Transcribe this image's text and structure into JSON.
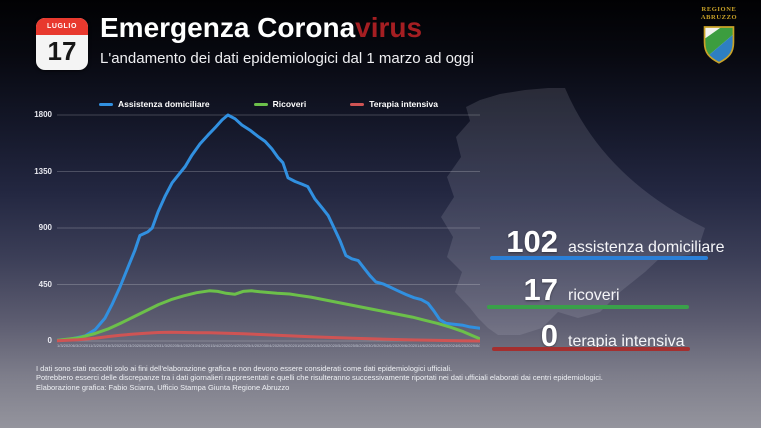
{
  "header": {
    "calendar": {
      "month": "LUGLIO",
      "day": "17"
    },
    "title_white": "Emergenza Corona",
    "title_red": "virus",
    "subtitle": "L'andamento dei dati epidemiologici dal 1 marzo ad oggi",
    "logo": {
      "line1": "REGIONE",
      "line2": "ABRUZZO"
    }
  },
  "chart_data": {
    "type": "line",
    "title": "",
    "xlabel": "",
    "ylabel": "",
    "x_range": [
      "1/3/2020",
      "17/7/2020"
    ],
    "ylim": [
      0,
      1800
    ],
    "yticks": [
      0,
      450,
      900,
      1350,
      1800
    ],
    "grid": true,
    "legend_position": "top",
    "x_tick_labels": [
      "1/3/2020",
      "6/3/2020",
      "11/3/2020",
      "16/3/2020",
      "21/3/2020",
      "26/3/2020",
      "31/3/2020",
      "5/4/2020",
      "10/4/2020",
      "15/4/2020",
      "20/4/2020",
      "25/4/2020",
      "30/4/2020",
      "5/5/2020",
      "10/5/2020",
      "15/5/2020",
      "20/5/2020",
      "25/5/2020",
      "30/5/2020",
      "4/6/2020",
      "9/6/2020",
      "14/6/2020",
      "19/6/2020",
      "24/6/2020",
      "29/6/2020",
      "4/7/2020",
      "9/7/2020",
      "14/7/2020"
    ],
    "series": [
      {
        "name": "Assistenza domiciliare",
        "color": "#3190e0",
        "final_value": 102,
        "peak_value": 1800,
        "points": [
          [
            0,
            5
          ],
          [
            0.031,
            15
          ],
          [
            0.066,
            40
          ],
          [
            0.09,
            90
          ],
          [
            0.113,
            180
          ],
          [
            0.13,
            290
          ],
          [
            0.149,
            430
          ],
          [
            0.168,
            590
          ],
          [
            0.184,
            720
          ],
          [
            0.196,
            840
          ],
          [
            0.215,
            870
          ],
          [
            0.225,
            900
          ],
          [
            0.239,
            1030
          ],
          [
            0.255,
            1150
          ],
          [
            0.272,
            1260
          ],
          [
            0.291,
            1340
          ],
          [
            0.303,
            1390
          ],
          [
            0.319,
            1480
          ],
          [
            0.338,
            1570
          ],
          [
            0.357,
            1640
          ],
          [
            0.374,
            1700
          ],
          [
            0.39,
            1760
          ],
          [
            0.404,
            1800
          ],
          [
            0.421,
            1770
          ],
          [
            0.437,
            1720
          ],
          [
            0.456,
            1680
          ],
          [
            0.475,
            1630
          ],
          [
            0.492,
            1590
          ],
          [
            0.508,
            1530
          ],
          [
            0.523,
            1460
          ],
          [
            0.534,
            1420
          ],
          [
            0.546,
            1300
          ],
          [
            0.563,
            1270
          ],
          [
            0.579,
            1250
          ],
          [
            0.593,
            1230
          ],
          [
            0.61,
            1130
          ],
          [
            0.627,
            1060
          ],
          [
            0.641,
            1000
          ],
          [
            0.655,
            900
          ],
          [
            0.669,
            800
          ],
          [
            0.683,
            680
          ],
          [
            0.697,
            655
          ],
          [
            0.712,
            640
          ],
          [
            0.726,
            580
          ],
          [
            0.74,
            520
          ],
          [
            0.754,
            470
          ],
          [
            0.771,
            455
          ],
          [
            0.787,
            430
          ],
          [
            0.806,
            400
          ],
          [
            0.825,
            370
          ],
          [
            0.844,
            345
          ],
          [
            0.861,
            330
          ],
          [
            0.877,
            300
          ],
          [
            0.891,
            240
          ],
          [
            0.905,
            170
          ],
          [
            0.92,
            140
          ],
          [
            0.941,
            132
          ],
          [
            0.96,
            125
          ],
          [
            0.976,
            112
          ],
          [
            1,
            102
          ]
        ]
      },
      {
        "name": "Ricoveri",
        "color": "#6cc04a",
        "final_value": 17,
        "peak_value": 400,
        "points": [
          [
            0,
            5
          ],
          [
            0.05,
            25
          ],
          [
            0.09,
            60
          ],
          [
            0.12,
            95
          ],
          [
            0.15,
            140
          ],
          [
            0.18,
            190
          ],
          [
            0.21,
            240
          ],
          [
            0.24,
            290
          ],
          [
            0.27,
            330
          ],
          [
            0.3,
            360
          ],
          [
            0.33,
            385
          ],
          [
            0.36,
            400
          ],
          [
            0.38,
            395
          ],
          [
            0.4,
            380
          ],
          [
            0.42,
            372
          ],
          [
            0.44,
            395
          ],
          [
            0.46,
            400
          ],
          [
            0.48,
            392
          ],
          [
            0.5,
            386
          ],
          [
            0.52,
            380
          ],
          [
            0.55,
            374
          ],
          [
            0.57,
            364
          ],
          [
            0.6,
            350
          ],
          [
            0.63,
            330
          ],
          [
            0.66,
            310
          ],
          [
            0.69,
            290
          ],
          [
            0.72,
            270
          ],
          [
            0.75,
            250
          ],
          [
            0.78,
            230
          ],
          [
            0.81,
            210
          ],
          [
            0.84,
            190
          ],
          [
            0.87,
            165
          ],
          [
            0.9,
            140
          ],
          [
            0.93,
            110
          ],
          [
            0.96,
            75
          ],
          [
            0.98,
            45
          ],
          [
            1,
            17
          ]
        ]
      },
      {
        "name": "Terapia intensiva",
        "color": "#cf5454",
        "final_value": 0,
        "peak_value": 70,
        "points": [
          [
            0,
            2
          ],
          [
            0.05,
            10
          ],
          [
            0.09,
            22
          ],
          [
            0.12,
            35
          ],
          [
            0.15,
            45
          ],
          [
            0.18,
            55
          ],
          [
            0.21,
            62
          ],
          [
            0.24,
            68
          ],
          [
            0.27,
            70
          ],
          [
            0.3,
            68
          ],
          [
            0.33,
            66
          ],
          [
            0.36,
            65
          ],
          [
            0.4,
            62
          ],
          [
            0.44,
            58
          ],
          [
            0.48,
            52
          ],
          [
            0.52,
            46
          ],
          [
            0.56,
            40
          ],
          [
            0.6,
            34
          ],
          [
            0.65,
            28
          ],
          [
            0.7,
            22
          ],
          [
            0.75,
            17
          ],
          [
            0.8,
            12
          ],
          [
            0.85,
            8
          ],
          [
            0.9,
            5
          ],
          [
            0.95,
            2
          ],
          [
            1,
            0
          ]
        ]
      }
    ]
  },
  "stats": [
    {
      "value": "102",
      "label": "assistenza domiciliare",
      "color": "#2b7fd6"
    },
    {
      "value": "17",
      "label": "ricoveri",
      "color": "#3aa04a"
    },
    {
      "value": "0",
      "label": "terapia intensiva",
      "color": "#a42f2f"
    }
  ],
  "footer": {
    "lines": [
      "I dati sono stati raccolti solo ai fini dell'elaborazione grafica e non devono essere considerati come dati epidemiologici ufficiali.",
      "Potrebbero esserci delle discrepanze tra i dati giornalieri rappresentati e quelli che risulteranno successivamente riportati nei dati ufficiali elaborati dai centri epidemiologici.",
      "Elaborazione grafica: Fabio Sciarra, Ufficio Stampa Giunta Regione Abruzzo"
    ]
  }
}
